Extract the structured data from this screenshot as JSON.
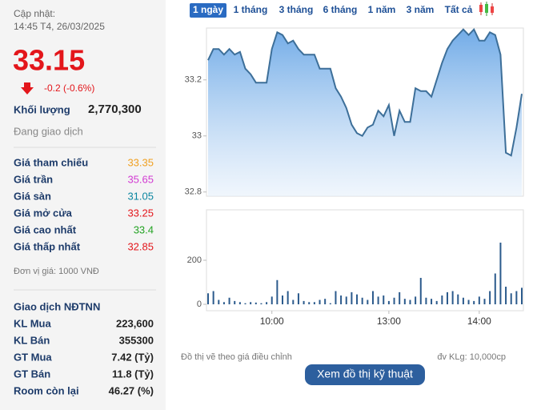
{
  "header": {
    "update_label": "Cập nhật:",
    "update_time": "14:45 T4, 26/03/2025"
  },
  "quote": {
    "price": 33.15,
    "change": "-0.2 (-0.6%)",
    "color": "#e3161b"
  },
  "volume": {
    "label": "Khối lượng",
    "value": "2,770,300"
  },
  "status": "Đang giao dịch",
  "stats": [
    {
      "label": "Giá tham chiếu",
      "value": 33.35,
      "color": "#f0a020"
    },
    {
      "label": "Giá trần",
      "value": 35.65,
      "color": "#d23ad2"
    },
    {
      "label": "Giá sàn",
      "value": 31.05,
      "color": "#0b86a0"
    },
    {
      "label": "Giá mở cửa",
      "value": 33.25,
      "color": "#e3161b"
    },
    {
      "label": "Giá cao nhất",
      "value": 33.4,
      "color": "#23a323"
    },
    {
      "label": "Giá thấp nhất",
      "value": 32.85,
      "color": "#e3161b"
    }
  ],
  "unit_note": "Đơn vị giá: 1000 VNĐ",
  "foreign": {
    "title": "Giao dịch NĐTNN",
    "rows": [
      {
        "label": "KL Mua",
        "value": "223,600"
      },
      {
        "label": "KL Bán",
        "value": "355300"
      },
      {
        "label": "GT Mua",
        "value": "7.42 (Tỷ)"
      },
      {
        "label": "GT Bán",
        "value": "11.8 (Tỷ)"
      },
      {
        "label": "Room còn lại",
        "value": "46.27 (%)"
      }
    ]
  },
  "tabs": {
    "items": [
      "1 ngày",
      "1 tháng",
      "3 tháng",
      "6 tháng",
      "1 năm",
      "3 năm",
      "Tất cả"
    ],
    "active": 0
  },
  "chart_data": [
    {
      "type": "area",
      "color": "#3d6f99",
      "values": [
        33.27,
        33.31,
        33.31,
        33.29,
        33.31,
        33.29,
        33.3,
        33.24,
        33.22,
        33.19,
        33.19,
        33.19,
        33.31,
        33.37,
        33.36,
        33.33,
        33.34,
        33.31,
        33.29,
        33.29,
        33.29,
        33.24,
        33.24,
        33.24,
        33.17,
        33.14,
        33.1,
        33.04,
        33.01,
        33.0,
        33.03,
        33.04,
        33.09,
        33.07,
        33.11,
        33.0,
        33.09,
        33.05,
        33.05,
        33.17,
        33.16,
        33.16,
        33.14,
        33.2,
        33.26,
        33.31,
        33.34,
        33.36,
        33.38,
        33.36,
        33.38,
        33.34,
        33.34,
        33.37,
        33.36,
        33.29,
        32.94,
        32.93,
        33.03,
        33.15
      ],
      "ylim": [
        32.785,
        33.385
      ],
      "yticks": [
        32.8,
        33,
        33.2
      ]
    },
    {
      "type": "bar",
      "color": "#2b5a8c",
      "categories": [
        null,
        null,
        null,
        null,
        null,
        null,
        null,
        null,
        null,
        null,
        null,
        null,
        "10:00",
        null,
        null,
        null,
        null,
        null,
        null,
        null,
        null,
        null,
        null,
        null,
        null,
        null,
        null,
        null,
        null,
        null,
        null,
        null,
        null,
        null,
        "13:00",
        null,
        null,
        null,
        null,
        null,
        null,
        null,
        null,
        null,
        null,
        null,
        null,
        null,
        null,
        null,
        null,
        "14:00",
        null,
        null,
        null,
        null,
        null,
        null,
        null,
        null
      ],
      "values": [
        50,
        60,
        20,
        10,
        30,
        15,
        10,
        5,
        10,
        8,
        5,
        10,
        35,
        110,
        40,
        60,
        20,
        50,
        15,
        10,
        10,
        20,
        25,
        5,
        60,
        40,
        35,
        55,
        45,
        30,
        20,
        60,
        35,
        40,
        15,
        30,
        55,
        25,
        20,
        35,
        120,
        30,
        25,
        15,
        40,
        55,
        60,
        45,
        30,
        20,
        15,
        35,
        25,
        60,
        140,
        280,
        80,
        50,
        60,
        75
      ],
      "ylim": [
        -29,
        429
      ],
      "yticks": [
        0,
        200
      ]
    }
  ],
  "footer": {
    "note": "Đồ thị vẽ theo giá điều chỉnh",
    "volume_unit": "đv KLg: 10,000cp",
    "button": "Xem đồ thị kỹ thuật"
  }
}
